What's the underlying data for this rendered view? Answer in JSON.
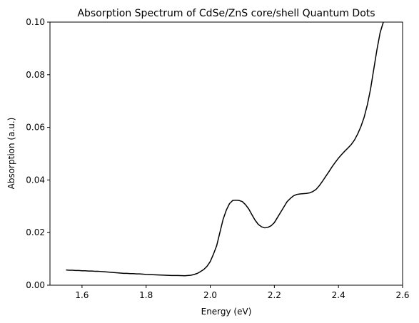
{
  "chart_data": {
    "type": "line",
    "title": "Absorption Spectrum of CdSe/ZnS core/shell Quantum Dots",
    "xlabel": "Energy (eV)",
    "ylabel": "Absorption (a.u.)",
    "xlim": [
      1.5,
      2.6
    ],
    "ylim": [
      0.0,
      0.1
    ],
    "xticks": [
      "1.6",
      "1.8",
      "2.0",
      "2.2",
      "2.4",
      "2.6"
    ],
    "yticks": [
      "0.00",
      "0.02",
      "0.04",
      "0.06",
      "0.08",
      "0.10"
    ],
    "xtick_values": [
      1.6,
      1.8,
      2.0,
      2.2,
      2.4,
      2.6
    ],
    "ytick_values": [
      0.0,
      0.02,
      0.04,
      0.06,
      0.08,
      0.1
    ],
    "grid": false,
    "line_color": "#000000",
    "series": [
      {
        "x": [
          1.55,
          1.56,
          1.57,
          1.58,
          1.59,
          1.6,
          1.61,
          1.62,
          1.63,
          1.64,
          1.65,
          1.66,
          1.67,
          1.68,
          1.69,
          1.7,
          1.71,
          1.72,
          1.73,
          1.74,
          1.75,
          1.76,
          1.77,
          1.78,
          1.79,
          1.8,
          1.82,
          1.84,
          1.86,
          1.88,
          1.9,
          1.92,
          1.94,
          1.95,
          1.96,
          1.97,
          1.98,
          1.99,
          2.0,
          2.01,
          2.02,
          2.03,
          2.04,
          2.05,
          2.06,
          2.07,
          2.08,
          2.09,
          2.1,
          2.11,
          2.12,
          2.13,
          2.14,
          2.15,
          2.16,
          2.17,
          2.18,
          2.19,
          2.2,
          2.21,
          2.22,
          2.23,
          2.24,
          2.25,
          2.26,
          2.27,
          2.28,
          2.29,
          2.3,
          2.31,
          2.32,
          2.33,
          2.34,
          2.35,
          2.36,
          2.37,
          2.38,
          2.39,
          2.4,
          2.41,
          2.42,
          2.43,
          2.44,
          2.45,
          2.46,
          2.47,
          2.48,
          2.49,
          2.5,
          2.51,
          2.52,
          2.53,
          2.54
        ],
        "y": [
          0.0058,
          0.0057,
          0.0057,
          0.0056,
          0.0056,
          0.0055,
          0.0055,
          0.0054,
          0.0054,
          0.0053,
          0.0053,
          0.0052,
          0.0051,
          0.005,
          0.0049,
          0.0048,
          0.0047,
          0.0046,
          0.0045,
          0.0045,
          0.0044,
          0.0044,
          0.0043,
          0.0043,
          0.0042,
          0.0041,
          0.004,
          0.0039,
          0.0038,
          0.0037,
          0.0037,
          0.0036,
          0.0038,
          0.0041,
          0.0045,
          0.0052,
          0.006,
          0.0072,
          0.009,
          0.0118,
          0.015,
          0.02,
          0.025,
          0.0285,
          0.031,
          0.0322,
          0.0323,
          0.0322,
          0.0318,
          0.0306,
          0.029,
          0.0268,
          0.0247,
          0.0231,
          0.0222,
          0.0218,
          0.022,
          0.0226,
          0.0238,
          0.0258,
          0.0278,
          0.0298,
          0.0318,
          0.033,
          0.034,
          0.0345,
          0.0347,
          0.0348,
          0.0349,
          0.0351,
          0.0356,
          0.0364,
          0.0378,
          0.0395,
          0.0413,
          0.0431,
          0.045,
          0.0467,
          0.0483,
          0.0497,
          0.051,
          0.0522,
          0.0535,
          0.0552,
          0.0575,
          0.0603,
          0.0638,
          0.0685,
          0.0745,
          0.082,
          0.0895,
          0.096,
          0.1005
        ]
      }
    ]
  }
}
